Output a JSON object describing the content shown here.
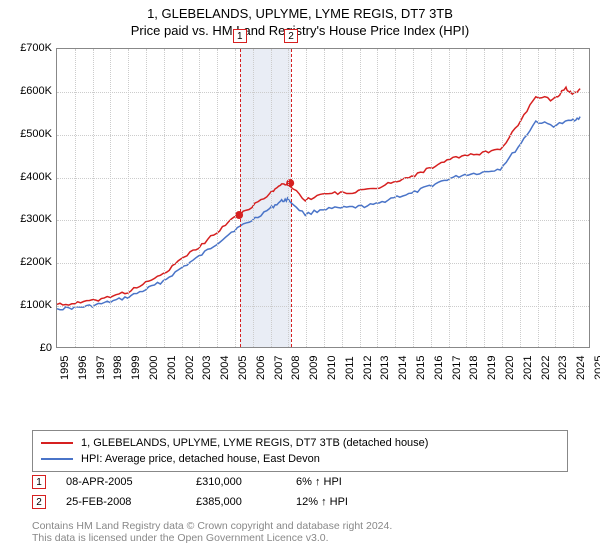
{
  "title": {
    "main": "1, GLEBELANDS, UPLYME, LYME REGIS, DT7 3TB",
    "sub": "Price paid vs. HM Land Registry's House Price Index (HPI)"
  },
  "chart": {
    "type": "line",
    "background_color": "#ffffff",
    "grid_color": "#cccccc",
    "border_color": "#888888",
    "xlim": [
      1995,
      2025
    ],
    "ylim": [
      0,
      700000
    ],
    "yticks": [
      0,
      100000,
      200000,
      300000,
      400000,
      500000,
      600000,
      700000
    ],
    "ytick_labels": [
      "£0",
      "£100K",
      "£200K",
      "£300K",
      "£400K",
      "£500K",
      "£600K",
      "£700K"
    ],
    "xticks": [
      1995,
      1996,
      1997,
      1998,
      1999,
      2000,
      2001,
      2002,
      2003,
      2004,
      2005,
      2006,
      2007,
      2008,
      2009,
      2010,
      2011,
      2012,
      2013,
      2014,
      2015,
      2016,
      2017,
      2018,
      2019,
      2020,
      2021,
      2022,
      2023,
      2024,
      2025
    ],
    "title_fontsize": 13,
    "label_fontsize": 11,
    "series": [
      {
        "name": "1, GLEBELANDS, UPLYME, LYME REGIS, DT7 3TB (detached house)",
        "color": "#d62020",
        "line_width": 1.5,
        "x": [
          1995,
          1996,
          1997,
          1998,
          1999,
          2000,
          2001,
          2002,
          2003,
          2004,
          2005,
          2006,
          2007,
          2007.6,
          2008,
          2009,
          2010,
          2011,
          2012,
          2013,
          2014,
          2015,
          2016,
          2017,
          2018,
          2019,
          2020,
          2021,
          2022,
          2023,
          2023.7,
          2024,
          2024.5
        ],
        "y": [
          100000,
          102000,
          108000,
          118000,
          130000,
          150000,
          172000,
          205000,
          235000,
          270000,
          305000,
          330000,
          360000,
          380000,
          385000,
          345000,
          360000,
          362000,
          365000,
          372000,
          390000,
          400000,
          420000,
          438000,
          450000,
          455000,
          465000,
          520000,
          590000,
          580000,
          610000,
          595000,
          605000
        ]
      },
      {
        "name": "HPI: Average price, detached house, East Devon",
        "color": "#4a74c8",
        "line_width": 1.5,
        "x": [
          1995,
          1996,
          1997,
          1998,
          1999,
          2000,
          2001,
          2002,
          2003,
          2004,
          2005,
          2006,
          2007,
          2007.6,
          2008,
          2009,
          2010,
          2011,
          2012,
          2013,
          2014,
          2015,
          2016,
          2017,
          2018,
          2019,
          2020,
          2021,
          2022,
          2023,
          2024,
          2024.5
        ],
        "y": [
          90000,
          92000,
          97000,
          106000,
          117000,
          135000,
          155000,
          185000,
          212000,
          243000,
          275000,
          298000,
          325000,
          342000,
          347000,
          311000,
          324000,
          326000,
          329000,
          335000,
          352000,
          360000,
          378000,
          394000,
          405000,
          410000,
          419000,
          469000,
          530000,
          520000,
          532000,
          540000
        ]
      }
    ],
    "markers_band": {
      "from_x": 2005.27,
      "to_x": 2008.15,
      "color": "rgba(200,210,230,0.4)"
    },
    "sale_markers": [
      {
        "index": "1",
        "x": 2005.27,
        "y": 310000,
        "color": "#d62020"
      },
      {
        "index": "2",
        "x": 2008.15,
        "y": 385000,
        "color": "#d62020"
      }
    ]
  },
  "legend": {
    "items": [
      {
        "color": "#d62020",
        "label": "1, GLEBELANDS, UPLYME, LYME REGIS, DT7 3TB (detached house)"
      },
      {
        "color": "#4a74c8",
        "label": "HPI: Average price, detached house, East Devon"
      }
    ]
  },
  "sales": [
    {
      "index": "1",
      "color": "#d62020",
      "date": "08-APR-2005",
      "price": "£310,000",
      "diff_pct": "6%",
      "arrow": "↑",
      "vs": "HPI"
    },
    {
      "index": "2",
      "color": "#d62020",
      "date": "25-FEB-2008",
      "price": "£385,000",
      "diff_pct": "12%",
      "arrow": "↑",
      "vs": "HPI"
    }
  ],
  "footer": {
    "line1": "Contains HM Land Registry data © Crown copyright and database right 2024.",
    "line2": "This data is licensed under the Open Government Licence v3.0."
  }
}
